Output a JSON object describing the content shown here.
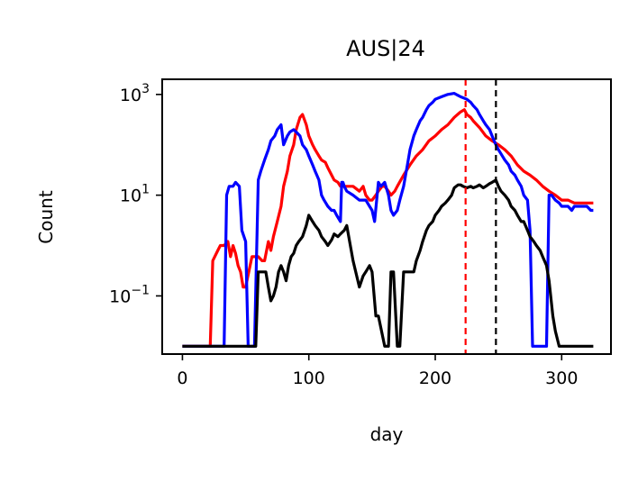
{
  "chart_data": {
    "type": "line",
    "title": "AUS|24",
    "xlabel": "day",
    "ylabel": "Count",
    "yscale": "log",
    "xlim": [
      -16,
      339
    ],
    "ylim": [
      0.007,
      2000
    ],
    "xticks": [
      0,
      100,
      200,
      300
    ],
    "xtick_labels": [
      "0",
      "100",
      "200",
      "300"
    ],
    "yticks": [
      0.1,
      10,
      1000
    ],
    "ytick_labels": [
      {
        "base": "10",
        "exp": "−1"
      },
      {
        "base": "10",
        "exp": "1"
      },
      {
        "base": "10",
        "exp": "3"
      }
    ],
    "grid": false,
    "series": [
      {
        "color": "#ff0000",
        "x": [
          0,
          22,
          24,
          28,
          30,
          33,
          36,
          38,
          40,
          42,
          44,
          46,
          48,
          50,
          55,
          60,
          63,
          65,
          68,
          70,
          72,
          75,
          78,
          80,
          83,
          85,
          88,
          90,
          93,
          95,
          98,
          100,
          103,
          105,
          108,
          110,
          113,
          115,
          118,
          120,
          123,
          125,
          128,
          130,
          135,
          140,
          143,
          145,
          148,
          150,
          153,
          155,
          158,
          160,
          163,
          165,
          168,
          170,
          175,
          180,
          185,
          190,
          195,
          200,
          205,
          210,
          215,
          220,
          223,
          225,
          228,
          230,
          235,
          240,
          245,
          250,
          255,
          260,
          265,
          270,
          275,
          280,
          285,
          290,
          295,
          300,
          305,
          310,
          315,
          320,
          325
        ],
        "y": [
          0.01,
          0.01,
          0.5,
          0.8,
          1.0,
          1.0,
          1.2,
          0.6,
          1.0,
          0.7,
          0.4,
          0.3,
          0.15,
          0.15,
          0.6,
          0.6,
          0.5,
          0.5,
          1.2,
          0.8,
          1.5,
          3,
          6,
          15,
          30,
          60,
          100,
          200,
          350,
          400,
          250,
          150,
          100,
          80,
          60,
          50,
          45,
          35,
          25,
          20,
          18,
          15,
          15,
          15,
          15,
          12,
          15,
          10,
          8,
          8,
          10,
          12,
          15,
          15,
          12,
          10,
          12,
          15,
          25,
          40,
          60,
          80,
          120,
          150,
          200,
          250,
          350,
          450,
          500,
          400,
          350,
          300,
          220,
          150,
          120,
          100,
          80,
          60,
          40,
          30,
          25,
          20,
          15,
          12,
          10,
          8,
          8,
          7,
          7,
          7,
          7
        ]
      },
      {
        "color": "#0000ff",
        "x": [
          0,
          33,
          35,
          37,
          40,
          42,
          45,
          47,
          50,
          52,
          55,
          57,
          60,
          62,
          65,
          68,
          70,
          73,
          75,
          78,
          80,
          83,
          85,
          88,
          90,
          93,
          95,
          98,
          100,
          103,
          105,
          108,
          110,
          112,
          115,
          118,
          120,
          122,
          125,
          126,
          127,
          128,
          130,
          135,
          140,
          145,
          148,
          150,
          152,
          155,
          157,
          160,
          163,
          165,
          167,
          170,
          172,
          175,
          178,
          180,
          183,
          185,
          188,
          190,
          193,
          195,
          198,
          200,
          205,
          210,
          215,
          220,
          225,
          228,
          230,
          233,
          235,
          238,
          240,
          243,
          245,
          248,
          250,
          253,
          255,
          258,
          260,
          263,
          265,
          268,
          270,
          273,
          275,
          277,
          278,
          280,
          282,
          285,
          288,
          290,
          292,
          295,
          298,
          300,
          302,
          305,
          308,
          310,
          315,
          320,
          323,
          325
        ],
        "y": [
          0.01,
          0.01,
          10,
          15,
          15,
          18,
          15,
          2,
          1.2,
          0.01,
          0.01,
          0.01,
          20,
          30,
          50,
          80,
          120,
          150,
          200,
          250,
          100,
          150,
          180,
          200,
          180,
          150,
          100,
          80,
          60,
          40,
          30,
          20,
          10,
          8,
          6,
          5,
          5,
          4,
          3,
          18,
          18,
          15,
          12,
          10,
          8,
          8,
          6,
          5,
          3,
          18,
          15,
          18,
          10,
          5,
          4,
          5,
          8,
          15,
          40,
          80,
          150,
          200,
          300,
          350,
          500,
          600,
          700,
          800,
          900,
          1000,
          1050,
          900,
          800,
          700,
          600,
          500,
          400,
          300,
          250,
          200,
          150,
          100,
          80,
          60,
          50,
          40,
          30,
          25,
          20,
          15,
          10,
          8,
          2,
          0.01,
          0.01,
          0.01,
          0.01,
          0.01,
          0.01,
          10,
          10,
          8,
          7,
          6,
          6,
          6,
          5,
          6,
          6,
          6,
          5,
          5
        ]
      },
      {
        "color": "#000000",
        "x": [
          0,
          58,
          60,
          62,
          64,
          66,
          68,
          70,
          72,
          74,
          76,
          78,
          80,
          82,
          84,
          86,
          88,
          90,
          92,
          95,
          98,
          100,
          103,
          105,
          108,
          110,
          113,
          115,
          118,
          120,
          123,
          125,
          128,
          130,
          135,
          140,
          143,
          145,
          148,
          150,
          153,
          155,
          160,
          163,
          165,
          167,
          170,
          172,
          175,
          178,
          180,
          183,
          185,
          188,
          190,
          193,
          195,
          198,
          200,
          203,
          205,
          208,
          210,
          213,
          215,
          218,
          220,
          222,
          225,
          228,
          230,
          233,
          235,
          238,
          240,
          243,
          245,
          248,
          250,
          252,
          255,
          258,
          260,
          263,
          265,
          268,
          270,
          273,
          275,
          278,
          280,
          283,
          285,
          288,
          290,
          293,
          295,
          298,
          300,
          305,
          310,
          315,
          320,
          325
        ],
        "y": [
          0.01,
          0.01,
          0.3,
          0.3,
          0.3,
          0.3,
          0.15,
          0.08,
          0.1,
          0.15,
          0.3,
          0.4,
          0.3,
          0.2,
          0.4,
          0.6,
          0.7,
          1.0,
          1.2,
          1.5,
          2.5,
          4,
          3,
          2.5,
          2,
          1.5,
          1.2,
          1.0,
          1.3,
          1.7,
          1.5,
          1.7,
          2,
          2.5,
          0.5,
          0.15,
          0.25,
          0.3,
          0.4,
          0.3,
          0.04,
          0.04,
          0.01,
          0.01,
          0.3,
          0.3,
          0.01,
          0.01,
          0.3,
          0.3,
          0.3,
          0.3,
          0.5,
          0.8,
          1.2,
          2,
          2.5,
          3,
          4,
          5,
          6,
          7,
          8,
          10,
          14,
          16,
          16,
          15,
          14,
          15,
          14,
          15,
          16,
          14,
          15,
          17,
          18,
          20,
          15,
          12,
          10,
          8,
          6,
          5,
          4,
          3,
          3,
          2,
          1.5,
          1.2,
          1,
          0.8,
          0.6,
          0.4,
          0.2,
          0.04,
          0.02,
          0.01,
          0.01,
          0.01,
          0.01,
          0.01,
          0.01,
          0.01
        ]
      }
    ],
    "vlines": [
      {
        "x": 224,
        "color": "#ff0000",
        "style": "dashed"
      },
      {
        "x": 248,
        "color": "#000000",
        "style": "dashed"
      }
    ]
  }
}
